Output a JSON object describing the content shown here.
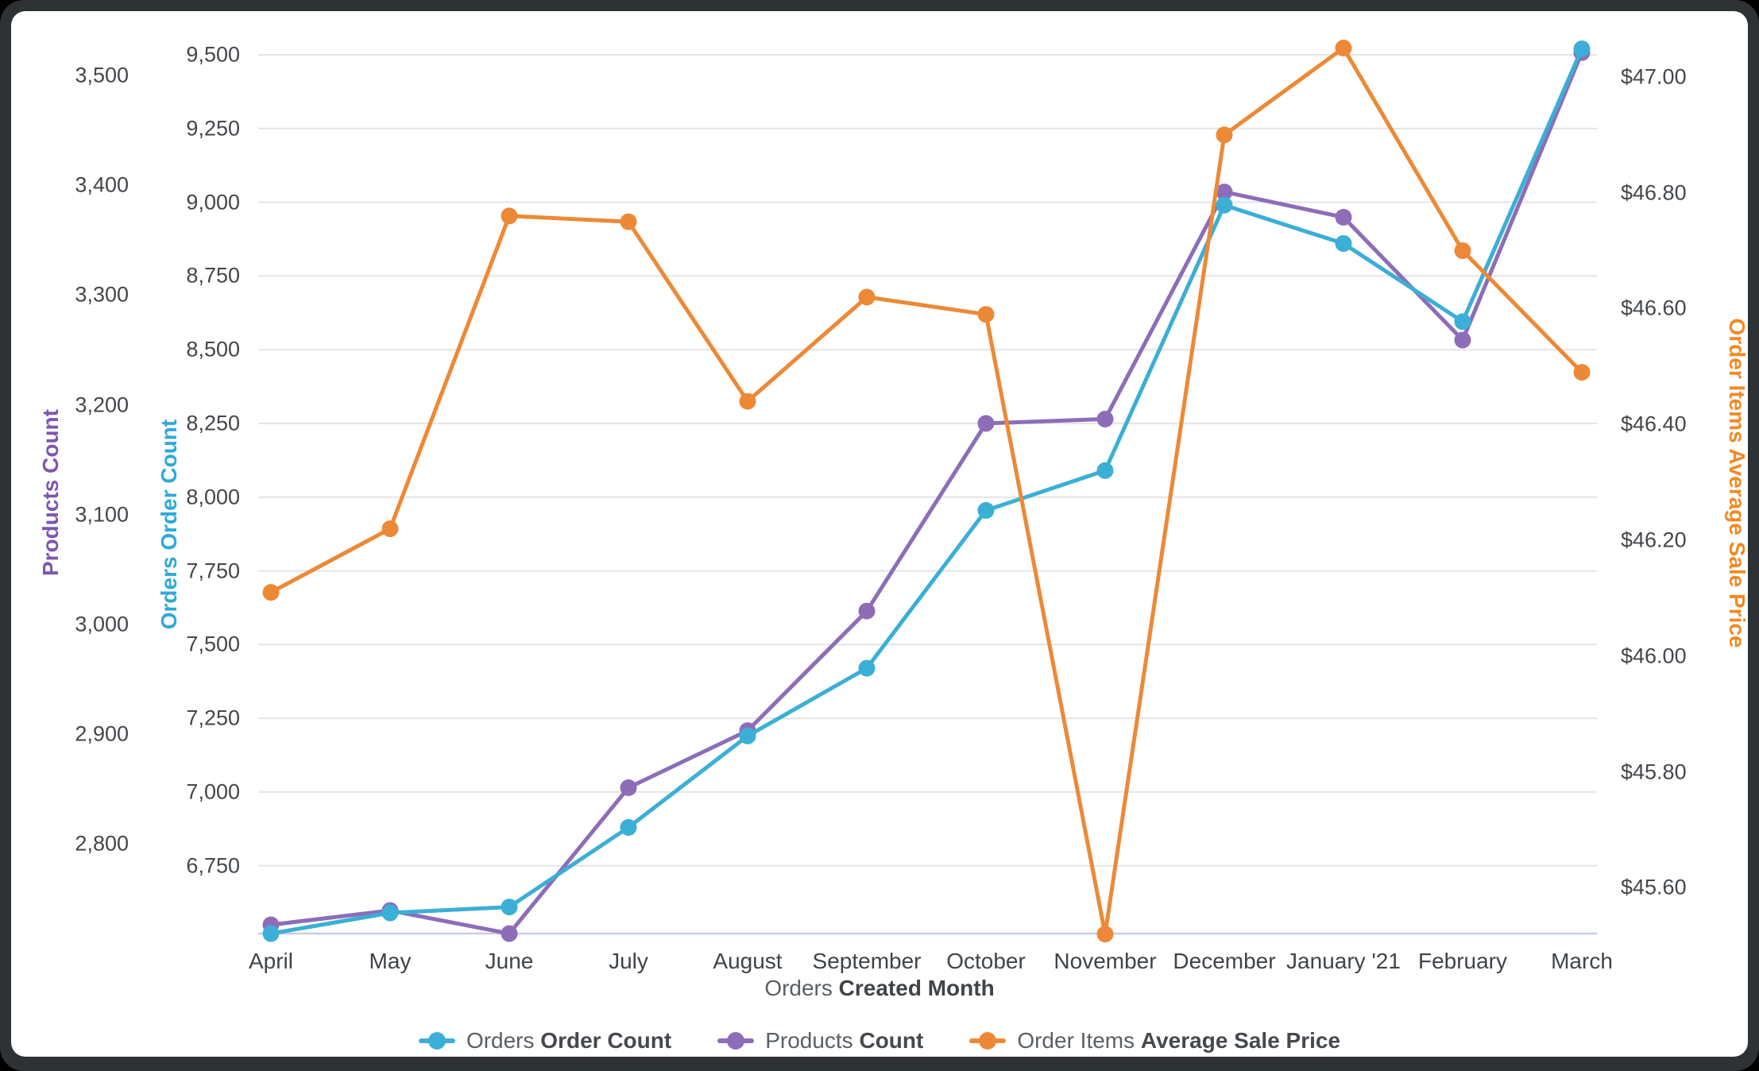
{
  "window": {
    "frame_color": "#2d3335",
    "card_color": "#ffffff"
  },
  "chart_data": {
    "type": "line",
    "categories": [
      "April",
      "May",
      "June",
      "July",
      "August",
      "September",
      "October",
      "November",
      "December",
      "January '21",
      "February",
      "March"
    ],
    "series": [
      {
        "id": "orders-order-count",
        "label_prefix": "Orders",
        "label_bold": "Order Count",
        "axis": "orders",
        "color": "#3BAFD5",
        "values": [
          6520,
          6590,
          6610,
          6880,
          7190,
          7420,
          7955,
          8090,
          8990,
          8860,
          8595,
          9520
        ]
      },
      {
        "id": "products-count",
        "label_prefix": "Products",
        "label_bold": "Count",
        "axis": "products",
        "color": "#8D6DB7",
        "values": [
          2726,
          2739,
          2718,
          2851,
          2903,
          3012,
          3183,
          3187,
          3394,
          3371,
          3259,
          3521
        ]
      },
      {
        "id": "order-items-average-sale-price",
        "label_prefix": "Order Items",
        "label_bold": "Average Sale Price",
        "axis": "price",
        "color": "#ED8936",
        "values": [
          46.11,
          46.22,
          46.76,
          46.75,
          46.44,
          46.62,
          46.59,
          45.52,
          46.9,
          47.05,
          46.7,
          46.49
        ]
      }
    ],
    "axes": {
      "products": {
        "title": "Products Count",
        "title_color": "#7E57B0",
        "side": "left-outer",
        "ylim": [
          2718,
          3540
        ],
        "tick_values": [
          3500,
          3400,
          3300,
          3200,
          3100,
          3000,
          2900,
          2800
        ],
        "tick_labels": [
          "3,500",
          "3,400",
          "3,300",
          "3,200",
          "3,100",
          "3,000",
          "2,900",
          "2,800"
        ]
      },
      "orders": {
        "title": "Orders Order Count",
        "title_color": "#2FA8DC",
        "side": "left-inner",
        "ylim": [
          6520,
          9578
        ],
        "tick_values": [
          9500,
          9250,
          9000,
          8750,
          8500,
          8250,
          8000,
          7750,
          7500,
          7250,
          7000,
          6750
        ],
        "tick_labels": [
          "9,500",
          "9,250",
          "9,000",
          "8,750",
          "8,500",
          "8,250",
          "8,000",
          "7,750",
          "7,500",
          "7,250",
          "7,000",
          "6,750"
        ]
      },
      "price": {
        "title": "Order Items Average Sale Price",
        "title_color": "#F08A25",
        "side": "right",
        "ylim": [
          45.521,
          47.078
        ],
        "tick_values": [
          47.0,
          46.8,
          46.6,
          46.4,
          46.2,
          46.0,
          45.8,
          45.6
        ],
        "tick_labels": [
          "$47.00",
          "$46.80",
          "$46.60",
          "$46.40",
          "$46.20",
          "$46.00",
          "$45.80",
          "$45.60"
        ]
      }
    },
    "xlabel": {
      "prefix": "Orders",
      "bold": "Created Month"
    },
    "grid": true,
    "legend_position": "bottom",
    "gridline_color": "#e4e4e7",
    "xaxis_line_color": "#c5cde6"
  }
}
